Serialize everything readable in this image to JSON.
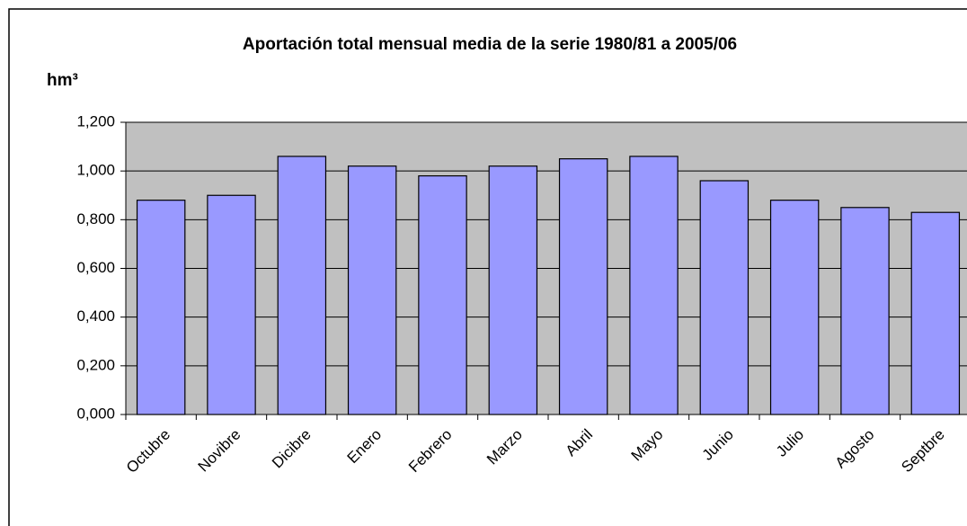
{
  "chart_data": {
    "type": "bar",
    "title": "Aportación total mensual media de la serie 1980/81 a 2005/06",
    "y_label": "hm³",
    "categories": [
      "Octubre",
      "Novibre",
      "Dicibre",
      "Enero",
      "Febrero",
      "Marzo",
      "Abril",
      "Mayo",
      "Junio",
      "Julio",
      "Agosto",
      "Septbre"
    ],
    "values": [
      0.88,
      0.9,
      1.06,
      1.02,
      0.98,
      1.02,
      1.05,
      1.06,
      0.96,
      0.88,
      0.85,
      0.83
    ],
    "color": "#9999ff",
    "ylim": [
      0,
      1.2
    ],
    "yticks": [
      {
        "value": 0,
        "label": "0,000"
      },
      {
        "value": 0.2,
        "label": "0,200"
      },
      {
        "value": 0.4,
        "label": "0,400"
      },
      {
        "value": 0.6,
        "label": "0,600"
      },
      {
        "value": 0.8,
        "label": "0,800"
      },
      {
        "value": 1.0,
        "label": "1,000"
      },
      {
        "value": 1.2,
        "label": "1,200"
      }
    ],
    "grid": true
  }
}
